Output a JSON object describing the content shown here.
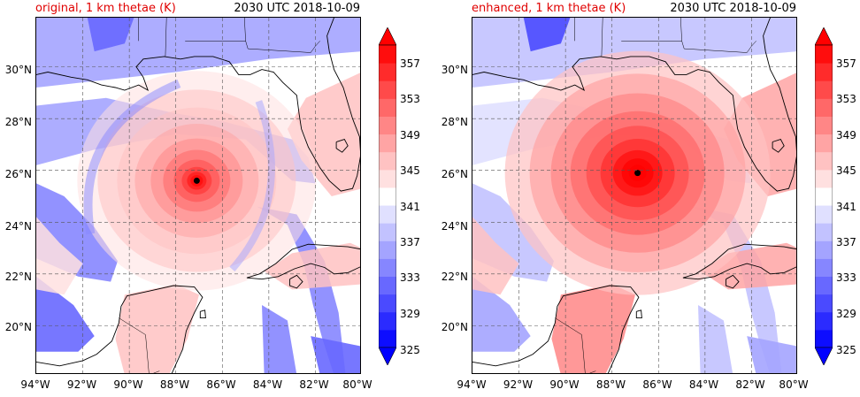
{
  "colormap": {
    "levels": [
      "< 325",
      "325",
      "327",
      "329",
      "331",
      "333",
      "335",
      "337",
      "339",
      "341",
      "343",
      "345",
      "347",
      "349",
      "351",
      "353",
      "355",
      "357",
      "> 359"
    ],
    "colors": [
      "#0000ff",
      "#0d0dff",
      "#2b2bff",
      "#4a4aff",
      "#6868ff",
      "#8686ff",
      "#a4a4ff",
      "#c2c2ff",
      "#e0e0ff",
      "#ffffff",
      "#ffe0e0",
      "#ffc2c2",
      "#ffa4a4",
      "#ff8686",
      "#ff6868",
      "#ff4a4a",
      "#ff2b2b",
      "#ff0d0d",
      "#ff0000"
    ]
  },
  "panels": [
    {
      "title_left": "original, 1 km thetae (K)",
      "title_right": "2030 UTC 2018-10-09",
      "lat_labels": [
        "30°N",
        "28°N",
        "26°N",
        "24°N",
        "22°N",
        "20°N"
      ],
      "lon_labels": [
        "94°W",
        "92°W",
        "90°W",
        "88°W",
        "86°W",
        "84°W",
        "82°W",
        "80°W"
      ],
      "colorbar_ticks": [
        "357",
        "353",
        "349",
        "345",
        "341",
        "337",
        "333",
        "329",
        "325"
      ],
      "storm_center": {
        "lat": 25.6,
        "lon": -87.1
      },
      "colorbar_name": "original-colorbar"
    },
    {
      "title_left": "enhanced, 1 km thetae (K)",
      "title_right": "2030 UTC 2018-10-09",
      "lat_labels": [
        "30°N",
        "28°N",
        "26°N",
        "24°N",
        "22°N",
        "20°N"
      ],
      "lon_labels": [
        "94°W",
        "92°W",
        "90°W",
        "88°W",
        "86°W",
        "84°W",
        "82°W",
        "80°W"
      ],
      "colorbar_ticks": [
        "357",
        "353",
        "349",
        "345",
        "341",
        "337",
        "333",
        "329",
        "325"
      ],
      "storm_center": {
        "lat": 25.9,
        "lon": -86.9
      },
      "colorbar_name": "enhanced-colorbar"
    }
  ],
  "map_extent": {
    "lon_min": -94,
    "lon_max": -80,
    "lat_min": 18.1,
    "lat_max": 31.9
  }
}
